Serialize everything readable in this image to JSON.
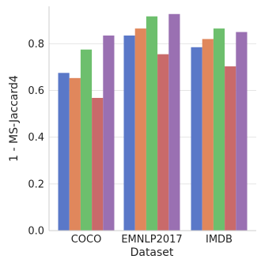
{
  "chart_data": {
    "type": "bar",
    "categories": [
      "COCO",
      "EMNLP2017",
      "IMDB"
    ],
    "series": [
      {
        "values": [
          0.675,
          0.835,
          0.785
        ],
        "color": "#5a78c8"
      },
      {
        "values": [
          0.653,
          0.865,
          0.82
        ],
        "color": "#e0875c"
      },
      {
        "values": [
          0.775,
          0.917,
          0.865
        ],
        "color": "#6dbf6d"
      },
      {
        "values": [
          0.568,
          0.755,
          0.703
        ],
        "color": "#c96a6a"
      },
      {
        "values": [
          0.835,
          0.927,
          0.85
        ],
        "color": "#9a70b2"
      }
    ],
    "xlabel": "Dataset",
    "ylabel": "1 - MS-Jaccard4",
    "ylim": [
      0,
      0.96
    ],
    "yticks": [
      "0.0",
      "0.2",
      "0.4",
      "0.6",
      "0.8"
    ],
    "grid": "horizontal",
    "legend": "none"
  }
}
